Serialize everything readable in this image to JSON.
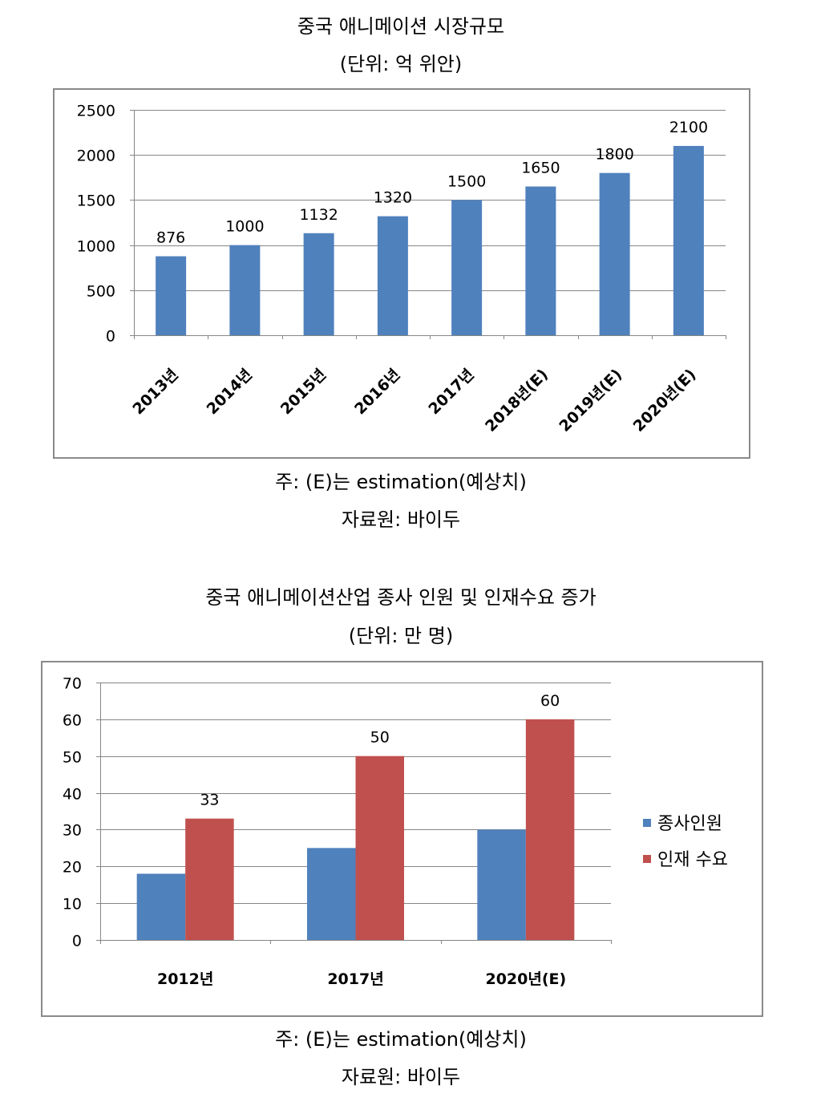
{
  "chart_data": [
    {
      "type": "bar",
      "title": "중국 애니메이션 시장규모",
      "subtitle": "(단위: 억 위안)",
      "categories": [
        "2013년",
        "2014년",
        "2015년",
        "2016년",
        "2017년",
        "2018년(E)",
        "2019년(E)",
        "2020년(E)"
      ],
      "values": [
        876,
        1000,
        1132,
        1320,
        1500,
        1650,
        1800,
        2100
      ],
      "ylim": [
        0,
        2500
      ],
      "yticks": [
        0,
        500,
        1000,
        1500,
        2000,
        2500
      ],
      "grid": true,
      "data_labels": true,
      "color": "#4F81BD",
      "notes": [
        "주: (E)는 estimation(예상치)",
        "자료원: 바이두"
      ]
    },
    {
      "type": "bar",
      "title": "중국 애니메이션산업 종사 인원 및 인재수요 증가",
      "subtitle": "(단위: 만 명)",
      "categories": [
        "2012년",
        "2017년",
        "2020년(E)"
      ],
      "series": [
        {
          "name": "종사인원",
          "values": [
            18,
            25,
            30
          ],
          "color": "#4F81BD",
          "data_labels": false
        },
        {
          "name": "인재 수요",
          "values": [
            33,
            50,
            60
          ],
          "color": "#C0504D",
          "data_labels": true
        }
      ],
      "ylim": [
        0,
        70
      ],
      "yticks": [
        0,
        10,
        20,
        30,
        40,
        50,
        60,
        70
      ],
      "grid": true,
      "legend": "right",
      "notes": [
        "주: (E)는 estimation(예상치)",
        "자료원: 바이두"
      ]
    }
  ]
}
